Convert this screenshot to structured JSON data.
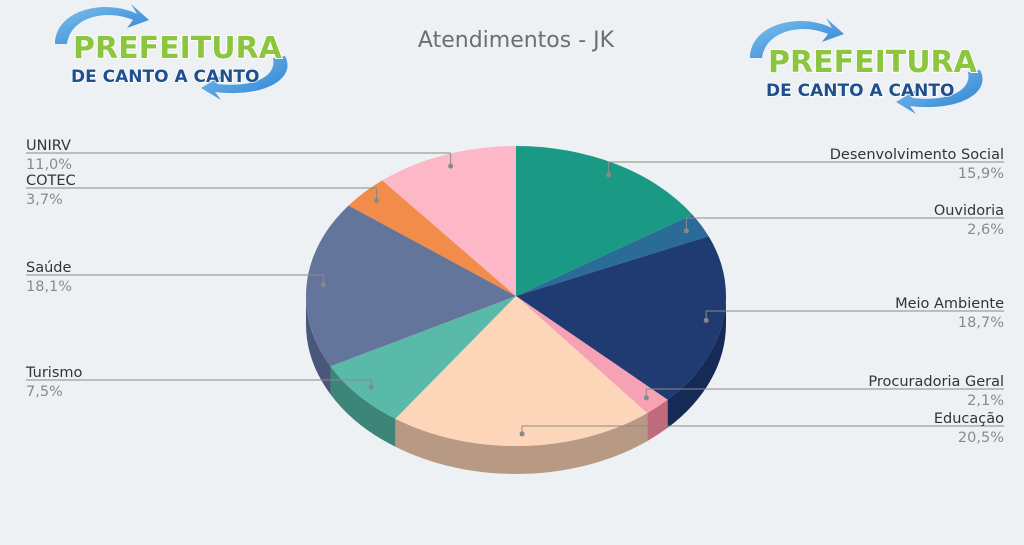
{
  "logo": {
    "line1": "PREFEITURA",
    "line2": "DE CANTO A CANTO"
  },
  "chart_data": {
    "type": "pie",
    "title": "Atendimentos - JK",
    "slices": [
      {
        "label": "Desenvolvimento Social",
        "value": 15.9,
        "pct_text": "15,9%",
        "color": "#1a9985",
        "side_color": "#117060"
      },
      {
        "label": "Ouvidoria",
        "value": 2.6,
        "pct_text": "2,6%",
        "color": "#2a6b97",
        "side_color": "#1d4f70"
      },
      {
        "label": "Meio Ambiente",
        "value": 18.7,
        "pct_text": "18,7%",
        "color": "#1f3b72",
        "side_color": "#152a54"
      },
      {
        "label": "Procuradoria Geral",
        "value": 2.1,
        "pct_text": "2,1%",
        "color": "#f7a1b4",
        "side_color": "#c2697c"
      },
      {
        "label": "Educação",
        "value": 20.5,
        "pct_text": "20,5%",
        "color": "#fdd5b8",
        "side_color": "#b89984"
      },
      {
        "label": "Turismo",
        "value": 7.5,
        "pct_text": "7,5%",
        "color": "#5abaa9",
        "side_color": "#3d8578"
      },
      {
        "label": "Saúde",
        "value": 18.1,
        "pct_text": "18,1%",
        "color": "#64759c",
        "side_color": "#48577a"
      },
      {
        "label": "COTEC",
        "value": 3.7,
        "pct_text": "3,7%",
        "color": "#f18c4b",
        "side_color": "#b86632"
      },
      {
        "label": "UNIRV",
        "value": 11.0,
        "pct_text": "11,0%",
        "color": "#fdb8c8",
        "side_color": "#c88a98"
      }
    ]
  }
}
